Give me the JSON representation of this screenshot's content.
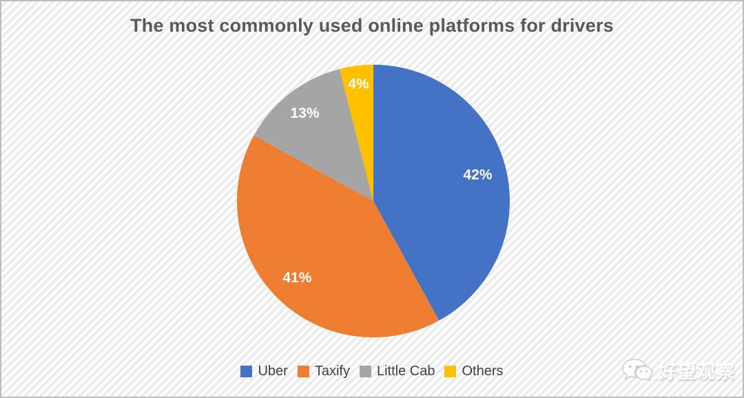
{
  "chart_data": {
    "type": "pie",
    "title": "The most commonly used online platforms for drivers",
    "categories": [
      "Uber",
      "Taxify",
      "Little Cab",
      "Others"
    ],
    "values": [
      42,
      41,
      13,
      4
    ],
    "slice_labels": [
      "42%",
      "41%",
      "13%",
      "4%"
    ],
    "unit": "%",
    "colors": [
      "#4472C4",
      "#ED7D31",
      "#A5A5A5",
      "#FFC000"
    ],
    "start_angle_deg": 0,
    "direction": "clockwise",
    "legend_position": "bottom",
    "label_radius": [
      0.79,
      0.79,
      0.82,
      0.87
    ],
    "label_color": "#FFFFFF",
    "title_color": "#595959",
    "legend_text_color": "#404040"
  },
  "watermark": {
    "icon": "wechat-icon",
    "text": "好望观察"
  }
}
